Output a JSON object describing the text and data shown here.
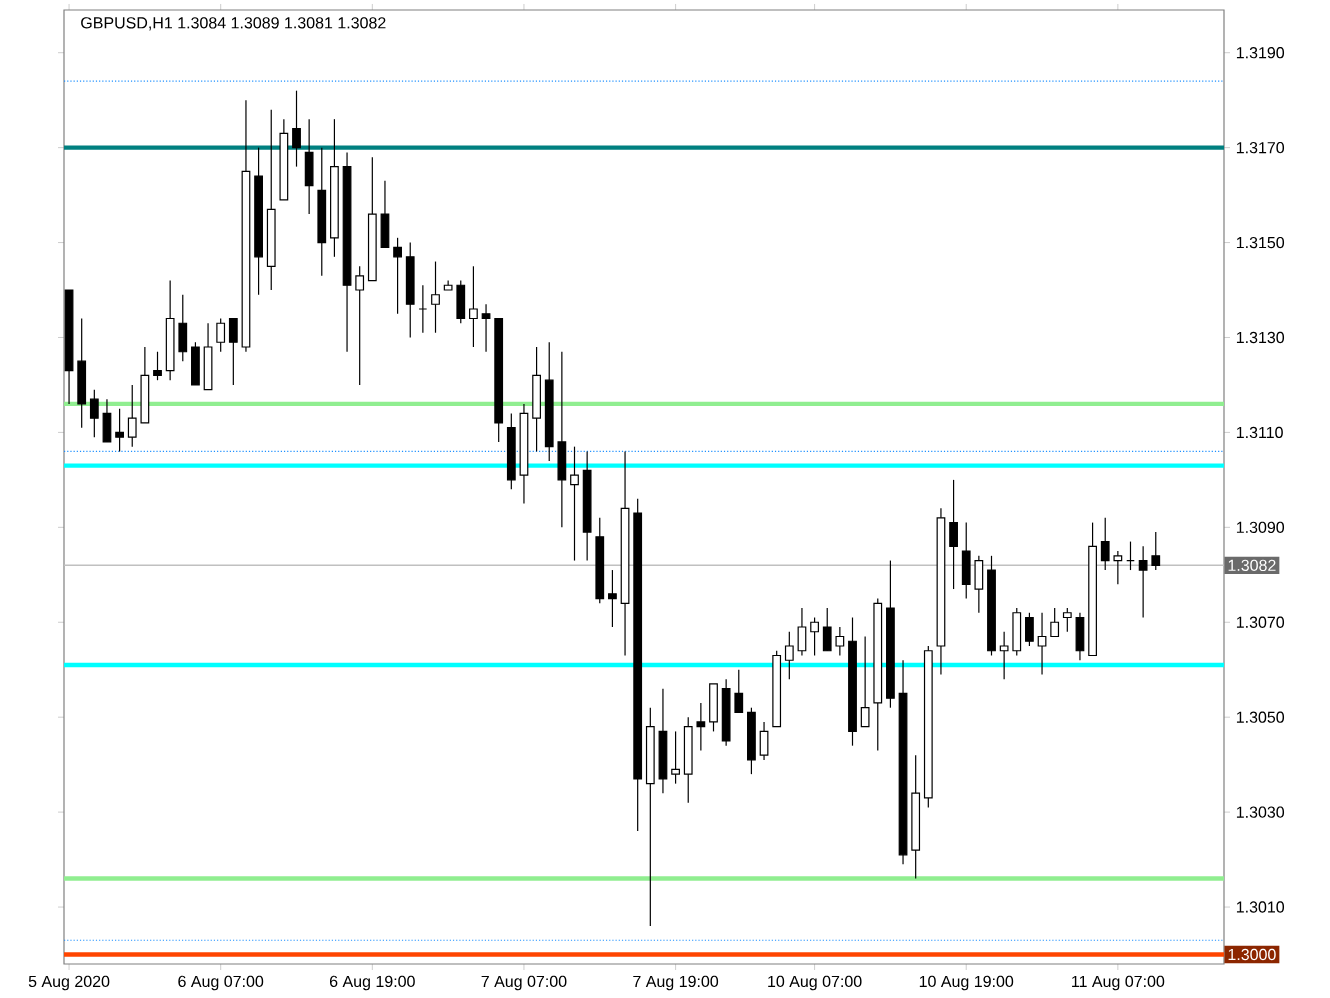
{
  "chart_data": {
    "type": "candlestick",
    "title": "GBPUSD,H1  1.3084 1.3089 1.3081 1.3082",
    "categories": [
      "5 Aug 2020",
      null,
      null,
      null,
      null,
      null,
      null,
      null,
      null,
      null,
      null,
      null,
      "6 Aug 07:00",
      null,
      null,
      null,
      null,
      null,
      null,
      null,
      null,
      null,
      null,
      null,
      "6 Aug 19:00",
      null,
      null,
      null,
      null,
      null,
      null,
      null,
      null,
      null,
      null,
      null,
      "7 Aug 07:00",
      null,
      null,
      null,
      null,
      null,
      null,
      null,
      null,
      null,
      null,
      null,
      "7 Aug 19:00",
      null,
      null,
      null,
      null,
      null,
      null,
      null,
      null,
      null,
      null,
      "10 Aug 07:00",
      null,
      null,
      null,
      null,
      null,
      null,
      null,
      null,
      null,
      null,
      null,
      "10 Aug 19:00",
      null,
      null,
      null,
      null,
      null,
      null,
      null,
      null,
      null,
      null,
      null,
      "11 Aug 07:00",
      null,
      null,
      null
    ],
    "ohlc": [
      [
        1.314,
        1.314,
        1.3116,
        1.3123
      ],
      [
        1.3125,
        1.3134,
        1.3111,
        1.3116
      ],
      [
        1.3117,
        1.3119,
        1.3109,
        1.3113
      ],
      [
        1.3114,
        1.3117,
        1.3108,
        1.3108
      ],
      [
        1.311,
        1.3115,
        1.3106,
        1.3109
      ],
      [
        1.3109,
        1.312,
        1.3107,
        1.3113
      ],
      [
        1.3112,
        1.3128,
        1.3112,
        1.3122
      ],
      [
        1.3123,
        1.3127,
        1.3121,
        1.3122
      ],
      [
        1.3123,
        1.3142,
        1.3121,
        1.3134
      ],
      [
        1.3133,
        1.3139,
        1.3125,
        1.3127
      ],
      [
        1.3128,
        1.3129,
        1.312,
        1.312
      ],
      [
        1.3119,
        1.3133,
        1.3119,
        1.3128
      ],
      [
        1.3129,
        1.3134,
        1.3127,
        1.3133
      ],
      [
        1.3134,
        1.3134,
        1.312,
        1.3129
      ],
      [
        1.3128,
        1.318,
        1.3127,
        1.3165
      ],
      [
        1.3164,
        1.317,
        1.3139,
        1.3147
      ],
      [
        1.3145,
        1.3178,
        1.314,
        1.3157
      ],
      [
        1.3159,
        1.3176,
        1.3159,
        1.3173
      ],
      [
        1.3174,
        1.3182,
        1.3166,
        1.317
      ],
      [
        1.3169,
        1.3176,
        1.3156,
        1.3162
      ],
      [
        1.3161,
        1.317,
        1.3143,
        1.315
      ],
      [
        1.3151,
        1.3176,
        1.3147,
        1.3166
      ],
      [
        1.3166,
        1.3169,
        1.3127,
        1.3141
      ],
      [
        1.314,
        1.3145,
        1.312,
        1.3143
      ],
      [
        1.3142,
        1.3168,
        1.3142,
        1.3156
      ],
      [
        1.3156,
        1.3163,
        1.3149,
        1.3149
      ],
      [
        1.3149,
        1.3151,
        1.3135,
        1.3147
      ],
      [
        1.3147,
        1.315,
        1.313,
        1.3137
      ],
      [
        1.3136,
        1.3141,
        1.3131,
        1.3136
      ],
      [
        1.3137,
        1.3146,
        1.3131,
        1.3139
      ],
      [
        1.314,
        1.3142,
        1.314,
        1.3141
      ],
      [
        1.3141,
        1.3142,
        1.3133,
        1.3134
      ],
      [
        1.3134,
        1.3145,
        1.3128,
        1.3136
      ],
      [
        1.3135,
        1.3137,
        1.3127,
        1.3134
      ],
      [
        1.3134,
        1.3134,
        1.3108,
        1.3112
      ],
      [
        1.3111,
        1.3114,
        1.3098,
        1.31
      ],
      [
        1.3101,
        1.3116,
        1.3095,
        1.3114
      ],
      [
        1.3113,
        1.3128,
        1.3106,
        1.3122
      ],
      [
        1.3121,
        1.3129,
        1.3104,
        1.3107
      ],
      [
        1.3108,
        1.3127,
        1.309,
        1.31
      ],
      [
        1.3099,
        1.3107,
        1.3083,
        1.3101
      ],
      [
        1.3102,
        1.3106,
        1.3083,
        1.3089
      ],
      [
        1.3088,
        1.3092,
        1.3074,
        1.3075
      ],
      [
        1.3076,
        1.3081,
        1.3069,
        1.3075
      ],
      [
        1.3074,
        1.3106,
        1.3063,
        1.3094
      ],
      [
        1.3093,
        1.3096,
        1.3026,
        1.3037
      ],
      [
        1.3036,
        1.3052,
        1.3006,
        1.3048
      ],
      [
        1.3047,
        1.3056,
        1.3034,
        1.3037
      ],
      [
        1.3038,
        1.3047,
        1.3036,
        1.3039
      ],
      [
        1.3038,
        1.305,
        1.3032,
        1.3048
      ],
      [
        1.3049,
        1.3053,
        1.3043,
        1.3048
      ],
      [
        1.3049,
        1.3057,
        1.3047,
        1.3057
      ],
      [
        1.3056,
        1.3058,
        1.3044,
        1.3045
      ],
      [
        1.3055,
        1.306,
        1.3051,
        1.3051
      ],
      [
        1.3051,
        1.3052,
        1.3038,
        1.3041
      ],
      [
        1.3042,
        1.3049,
        1.3041,
        1.3047
      ],
      [
        1.3048,
        1.3064,
        1.3048,
        1.3063
      ],
      [
        1.3062,
        1.3068,
        1.3058,
        1.3065
      ],
      [
        1.3064,
        1.3073,
        1.3063,
        1.3069
      ],
      [
        1.3068,
        1.3071,
        1.3063,
        1.307
      ],
      [
        1.3069,
        1.3073,
        1.3064,
        1.3064
      ],
      [
        1.3065,
        1.3069,
        1.3063,
        1.3067
      ],
      [
        1.3066,
        1.3071,
        1.3044,
        1.3047
      ],
      [
        1.3048,
        1.3067,
        1.3048,
        1.3052
      ],
      [
        1.3053,
        1.3075,
        1.3043,
        1.3074
      ],
      [
        1.3073,
        1.3083,
        1.3052,
        1.3054
      ],
      [
        1.3055,
        1.3062,
        1.3019,
        1.3021
      ],
      [
        1.3022,
        1.3042,
        1.3016,
        1.3034
      ],
      [
        1.3033,
        1.3065,
        1.3031,
        1.3064
      ],
      [
        1.3065,
        1.3094,
        1.3059,
        1.3092
      ],
      [
        1.3091,
        1.31,
        1.3077,
        1.3086
      ],
      [
        1.3085,
        1.3091,
        1.3075,
        1.3078
      ],
      [
        1.3077,
        1.3084,
        1.3072,
        1.3083
      ],
      [
        1.3081,
        1.3084,
        1.3063,
        1.3064
      ],
      [
        1.3064,
        1.3068,
        1.3058,
        1.3065
      ],
      [
        1.3064,
        1.3073,
        1.3063,
        1.3072
      ],
      [
        1.3071,
        1.3072,
        1.3065,
        1.3066
      ],
      [
        1.3065,
        1.3072,
        1.3059,
        1.3067
      ],
      [
        1.3067,
        1.3073,
        1.3067,
        1.307
      ],
      [
        1.3071,
        1.3073,
        1.3068,
        1.3072
      ],
      [
        1.3071,
        1.3072,
        1.3062,
        1.3064
      ],
      [
        1.3063,
        1.3091,
        1.3063,
        1.3086
      ],
      [
        1.3087,
        1.3092,
        1.3081,
        1.3083
      ],
      [
        1.3083,
        1.3085,
        1.3078,
        1.3084
      ],
      [
        1.3083,
        1.3087,
        1.3081,
        1.3083
      ],
      [
        1.3083,
        1.3086,
        1.3071,
        1.3081
      ],
      [
        1.3084,
        1.3089,
        1.3081,
        1.3082
      ]
    ],
    "ylim": [
      1.2998,
      1.3199
    ],
    "yticks": [
      {
        "value": 1.301,
        "label": "1.3010"
      },
      {
        "value": 1.303,
        "label": "1.3030"
      },
      {
        "value": 1.305,
        "label": "1.3050"
      },
      {
        "value": 1.307,
        "label": "1.3070"
      },
      {
        "value": 1.309,
        "label": "1.3090"
      },
      {
        "value": 1.311,
        "label": "1.3110"
      },
      {
        "value": 1.313,
        "label": "1.3130"
      },
      {
        "value": 1.315,
        "label": "1.3150"
      },
      {
        "value": 1.317,
        "label": "1.3170"
      },
      {
        "value": 1.319,
        "label": "1.3190"
      }
    ],
    "ref_lines": [
      {
        "axis": "y",
        "value": 1.3184,
        "color": "#1e90ff",
        "line_style": "dotted"
      },
      {
        "axis": "y",
        "value": 1.317,
        "color": "#008080",
        "line_style": "solid"
      },
      {
        "axis": "y",
        "value": 1.3116,
        "color": "#90ee90",
        "line_style": "solid"
      },
      {
        "axis": "y",
        "value": 1.3106,
        "color": "#1e90ff",
        "line_style": "dotted"
      },
      {
        "axis": "y",
        "value": 1.3103,
        "color": "#00ffff",
        "line_style": "solid"
      },
      {
        "axis": "y",
        "value": 1.3082,
        "color": "#c0c0c0",
        "line_style": "solid",
        "label": "1.3082"
      },
      {
        "axis": "y",
        "value": 1.3061,
        "color": "#00ffff",
        "line_style": "solid"
      },
      {
        "axis": "y",
        "value": 1.3016,
        "color": "#90ee90",
        "line_style": "solid"
      },
      {
        "axis": "y",
        "value": 1.3003,
        "color": "#1e90ff",
        "line_style": "dotted"
      },
      {
        "axis": "y",
        "value": 1.3,
        "color": "#ff4500",
        "line_style": "solid",
        "label": "1.3000"
      }
    ]
  }
}
